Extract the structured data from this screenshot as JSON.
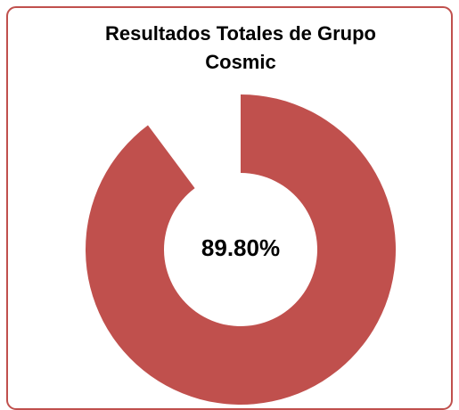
{
  "chart_data": {
    "type": "donut",
    "title": "Resultados Totales de Grupo Cosmic",
    "values": [
      89.8
    ],
    "value_labels": [
      "89.80%"
    ],
    "color": "#c0504d"
  }
}
